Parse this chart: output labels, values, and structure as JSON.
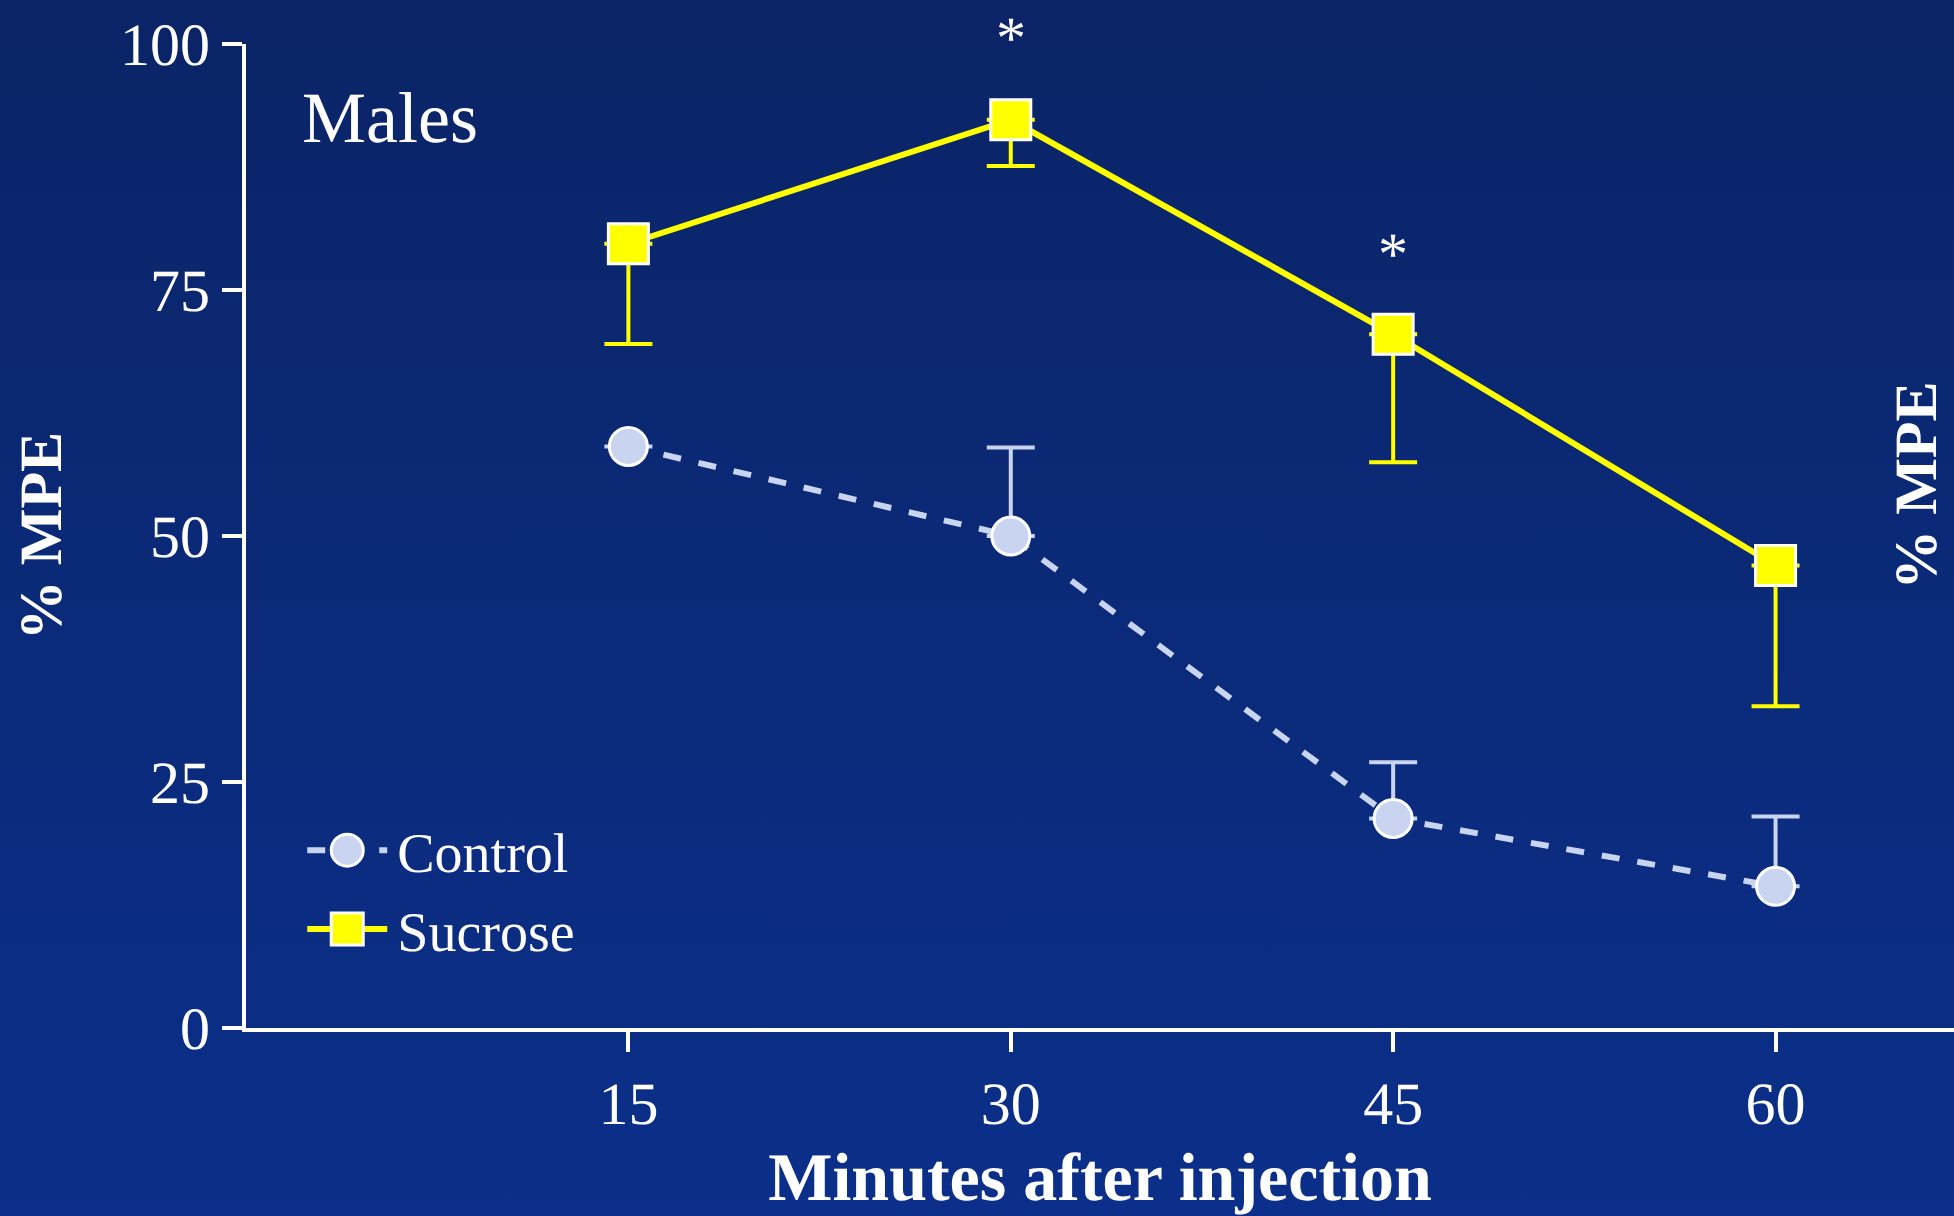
{
  "chart_data": {
    "type": "line",
    "xlabel": "Minutes after injection",
    "ylabel": "% MPE",
    "x": [
      15,
      30,
      45,
      60
    ],
    "xlim": [
      0,
      67
    ],
    "xticks": [
      15,
      30,
      45,
      60
    ],
    "ylim": [
      0,
      100
    ],
    "yticks": [
      0,
      25,
      50,
      75,
      100
    ],
    "series": [
      {
        "name": "Control",
        "color": "#c8d4f0",
        "values": [
          59.1,
          50,
          21.3,
          14.4
        ],
        "errors": [
          null,
          [
            50,
            59
          ],
          [
            21.3,
            27
          ],
          [
            14.4,
            21.5
          ]
        ],
        "marker": "circle",
        "line_style": "dashed"
      },
      {
        "name": "Sucrose",
        "color": "#ffff00",
        "values": [
          79.7,
          92.3,
          70.5,
          47
        ],
        "errors": [
          [
            69.5,
            79.7
          ],
          [
            87.6,
            92.3
          ],
          [
            57.5,
            70.5
          ],
          [
            32.7,
            47
          ]
        ],
        "marker": "square",
        "line_style": "solid"
      }
    ],
    "annotations": [
      "Males",
      {
        "text": "*",
        "x": 30,
        "y": 92.3
      },
      {
        "text": "*",
        "x": 45,
        "y": 70.5
      },
      "% MPE"
    ],
    "legend": "bottom left",
    "grid": false
  }
}
